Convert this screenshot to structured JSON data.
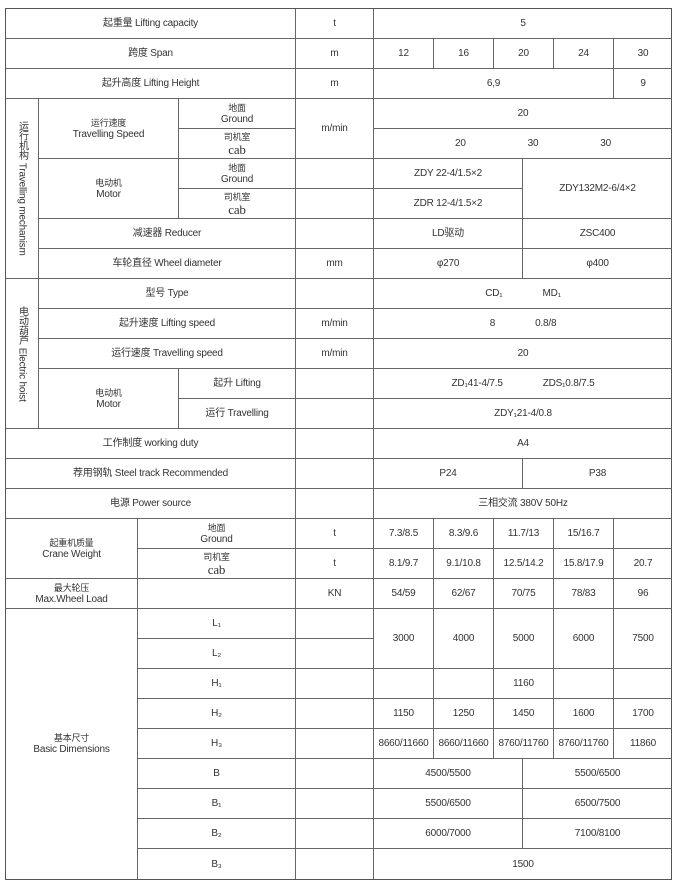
{
  "lifting_capacity": {
    "label": "起重量 Lifting capacity",
    "unit": "t",
    "value": "5"
  },
  "span": {
    "label": "跨度 Span",
    "unit": "m",
    "values": [
      "12",
      "16",
      "20",
      "24",
      "30"
    ]
  },
  "lifting_height": {
    "label": "起升高度 Lifting Height",
    "unit": "m",
    "values": [
      "6,9",
      "9"
    ]
  },
  "travelling_mechanism": {
    "group_label": "运行机构 Travelling mechanism",
    "travelling_speed": {
      "label_cn": "运行速度",
      "label_en": "Travelling Speed",
      "unit": "m/min",
      "ground": {
        "label_cn": "地面",
        "label_en": "Ground",
        "value": "20"
      },
      "cab": {
        "label_cn": "司机室",
        "label_en": "cab",
        "values": [
          "20",
          "30",
          "30"
        ]
      }
    },
    "motor": {
      "label_cn": "电动机",
      "label_en": "Motor",
      "ground": {
        "label_cn": "地面",
        "label_en": "Ground",
        "value": "ZDY 22-4/1.5×2"
      },
      "cab": {
        "label_cn": "司机室",
        "label_en": "cab",
        "value": "ZDR 12-4/1.5×2"
      },
      "shared_value": "ZDY132M2-6/4×2"
    },
    "reducer": {
      "label": "减速器 Reducer",
      "values": [
        "LD驱动",
        "ZSC400"
      ]
    },
    "wheel_diameter": {
      "label": "车轮直径 Wheel diameter",
      "unit": "mm",
      "values": [
        "φ270",
        "φ400"
      ]
    }
  },
  "electric_hoist": {
    "group_label": "电动葫芦 Electric hoist",
    "type": {
      "label": "型号 Type",
      "values": [
        "CD₁",
        "MD₁"
      ]
    },
    "lifting_speed": {
      "label": "起升速度 Lifting speed",
      "unit": "m/min",
      "values": [
        "8",
        "0.8/8"
      ]
    },
    "travelling_speed": {
      "label": "运行速度 Travelling speed",
      "unit": "m/min",
      "value": "20"
    },
    "motor": {
      "label_cn": "电动机",
      "label_en": "Motor",
      "lifting": {
        "label": "起升 Lifting",
        "values": [
          "ZD₁41-4/7.5",
          "ZDS₁0.8/7.5"
        ]
      },
      "travelling": {
        "label": "运行 Travelling",
        "value": "ZDY₁21-4/0.8"
      }
    }
  },
  "working_duty": {
    "label": "工作制度 working duty",
    "value": "A4"
  },
  "steel_track": {
    "label": "荐用钢轨 Steel track Recommended",
    "values": [
      "P24",
      "P38"
    ]
  },
  "power_source": {
    "label": "电源 Power source",
    "value": "三相交流  380V  50Hz"
  },
  "crane_weight": {
    "label_cn": "起重机质量",
    "label_en": "Crane Weight",
    "ground": {
      "label_cn": "地面",
      "label_en": "Ground",
      "unit": "t",
      "values": [
        "7.3/8.5",
        "8.3/9.6",
        "11.7/13",
        "15/16.7",
        ""
      ]
    },
    "cab": {
      "label_cn": "司机室",
      "label_en": "cab",
      "unit": "t",
      "values": [
        "8.1/9.7",
        "9.1/10.8",
        "12.5/14.2",
        "15.8/17.9",
        "20.7"
      ]
    }
  },
  "max_wheel_load": {
    "label_cn": "最大轮压",
    "label_en": "Max.Wheel Load",
    "unit": "KN",
    "values": [
      "54/59",
      "62/67",
      "70/75",
      "78/83",
      "96"
    ]
  },
  "basic_dimensions": {
    "label_cn": "基本尺寸",
    "label_en": "Basic Dimensions",
    "L1": {
      "label": "L₁"
    },
    "L2": {
      "label": "L₂"
    },
    "L_values": [
      "3000",
      "4000",
      "5000",
      "6000",
      "7500"
    ],
    "H1": {
      "label": "H₁",
      "values": [
        "",
        "",
        "1160",
        "",
        ""
      ]
    },
    "H2": {
      "label": "H₂",
      "values": [
        "1150",
        "1250",
        "1450",
        "1600",
        "1700"
      ]
    },
    "H3": {
      "label": "H₃",
      "values": [
        "8660/11660",
        "8660/11660",
        "8760/11760",
        "8760/11760",
        "11860"
      ]
    },
    "B": {
      "label": "B",
      "values": [
        "4500/5500",
        "5500/6500"
      ]
    },
    "B1": {
      "label": "B₁",
      "values": [
        "5500/6500",
        "6500/7500"
      ]
    },
    "B2": {
      "label": "B₂",
      "values": [
        "6000/7000",
        "7100/8100"
      ]
    },
    "B3": {
      "label": "B₃",
      "value": "1500"
    }
  }
}
